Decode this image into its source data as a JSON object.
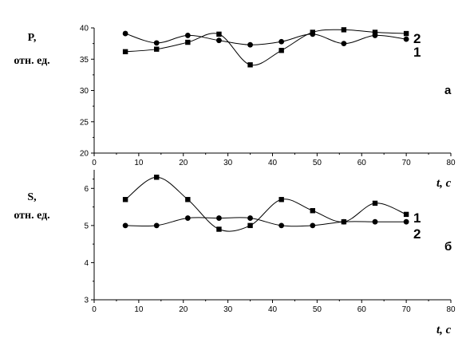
{
  "colors": {
    "ink": "#000000",
    "background": "#ffffff"
  },
  "chart_data": [
    {
      "type": "line",
      "panel_label": "а",
      "ylabel_line1": "P,",
      "ylabel_line2": "отн. ед.",
      "xlabel": "",
      "xlim": [
        0,
        80
      ],
      "ylim": [
        20,
        40
      ],
      "xticks": [
        0,
        10,
        20,
        30,
        40,
        50,
        60,
        70,
        80
      ],
      "yticks": [
        20,
        25,
        30,
        35,
        40
      ],
      "grid": false,
      "x": [
        7,
        14,
        21,
        28,
        35,
        42,
        49,
        56,
        63,
        70
      ],
      "series": [
        {
          "name": "1",
          "marker": "circle",
          "values": [
            39.1,
            37.6,
            38.8,
            38.0,
            37.3,
            37.8,
            39.0,
            37.5,
            38.8,
            38.2
          ]
        },
        {
          "name": "2",
          "marker": "square",
          "values": [
            36.2,
            36.6,
            37.7,
            39.0,
            34.1,
            36.4,
            39.3,
            39.7,
            39.3,
            39.1
          ]
        }
      ]
    },
    {
      "type": "line",
      "panel_label": "б",
      "ylabel_line1": "S,",
      "ylabel_line2": "отн. ед.",
      "xlabel": "t, c",
      "xlim": [
        0,
        80
      ],
      "ylim": [
        3,
        6.5
      ],
      "xticks": [
        0,
        10,
        20,
        30,
        40,
        50,
        60,
        70,
        80
      ],
      "yticks": [
        3,
        4,
        5,
        6
      ],
      "grid": false,
      "x": [
        7,
        14,
        21,
        28,
        35,
        42,
        49,
        56,
        63,
        70
      ],
      "series": [
        {
          "name": "1",
          "marker": "square",
          "values": [
            5.7,
            6.3,
            5.7,
            4.9,
            5.0,
            5.7,
            5.4,
            5.1,
            5.6,
            5.3
          ]
        },
        {
          "name": "2",
          "marker": "circle",
          "values": [
            5.0,
            5.0,
            5.2,
            5.2,
            5.2,
            5.0,
            5.0,
            5.1,
            5.1,
            5.1
          ]
        }
      ]
    }
  ],
  "between_label": "t, c"
}
